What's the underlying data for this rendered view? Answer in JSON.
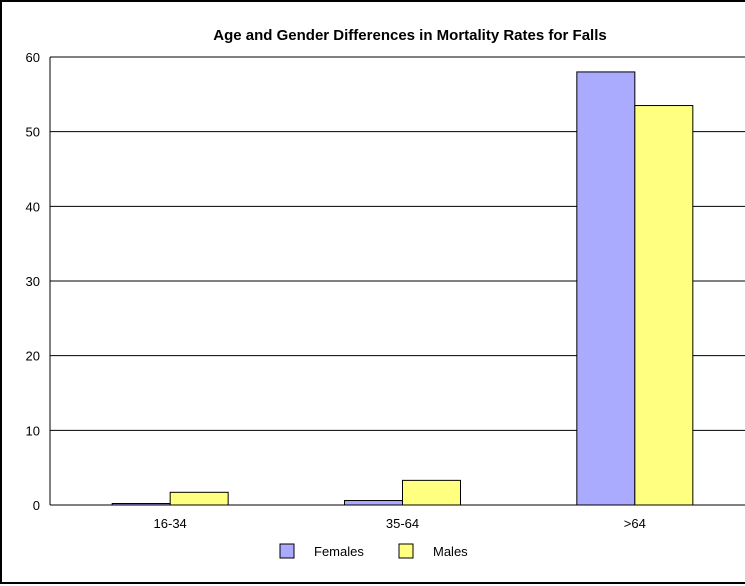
{
  "chart_data": {
    "type": "bar",
    "title": "Age and Gender Differences in Mortality Rates for Falls",
    "xlabel": "",
    "ylabel": "",
    "categories": [
      "16-34",
      "35-64",
      ">64"
    ],
    "series": [
      {
        "name": "Females",
        "values": [
          0.2,
          0.6,
          58
        ],
        "color": "#aaaaff"
      },
      {
        "name": "Males",
        "values": [
          1.7,
          3.3,
          53.5
        ],
        "color": "#ffff80"
      }
    ],
    "ylim": [
      0,
      60
    ],
    "yticks": [
      0,
      10,
      20,
      30,
      40,
      50,
      60
    ],
    "grid": true,
    "legend": "bottom"
  }
}
